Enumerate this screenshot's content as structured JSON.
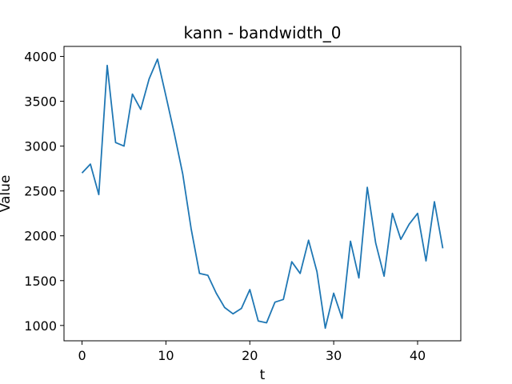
{
  "chart_data": {
    "type": "line",
    "title": "kann - bandwidth_0",
    "xlabel": "t",
    "ylabel": "Value",
    "xlim": [
      -2.15,
      45.15
    ],
    "ylim": [
      829,
      4112
    ],
    "xticks": [
      0,
      10,
      20,
      30,
      40
    ],
    "yticks": [
      1000,
      1500,
      2000,
      2500,
      3000,
      3500,
      4000
    ],
    "grid": false,
    "series": [
      {
        "color": "#1f77b4",
        "x": [
          0,
          1,
          2,
          3,
          4,
          5,
          6,
          7,
          8,
          9,
          10,
          11,
          12,
          13,
          14,
          15,
          16,
          17,
          18,
          19,
          20,
          21,
          22,
          23,
          24,
          25,
          26,
          27,
          28,
          29,
          30,
          31,
          32,
          33,
          34,
          35,
          36,
          37,
          38,
          39,
          40,
          41,
          42,
          43
        ],
        "values": [
          2700,
          2800,
          2460,
          3900,
          3040,
          3000,
          3580,
          3410,
          3750,
          3970,
          3560,
          3140,
          2690,
          2080,
          1580,
          1560,
          1360,
          1200,
          1130,
          1190,
          1400,
          1050,
          1030,
          1260,
          1290,
          1710,
          1580,
          1950,
          1600,
          970,
          1360,
          1080,
          1940,
          1530,
          2540,
          1920,
          1550,
          2250,
          1960,
          2130,
          2250,
          1720,
          2380,
          1860
        ]
      }
    ]
  }
}
